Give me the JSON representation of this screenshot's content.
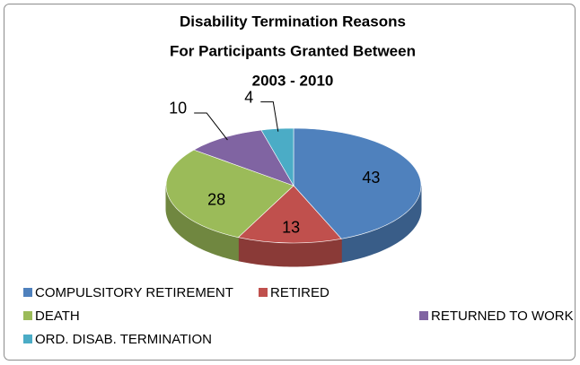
{
  "chart_data": {
    "type": "pie3d",
    "title": [
      "Disability Termination Reasons",
      "For Participants Granted Between",
      "2003 - 2010"
    ],
    "categories": [
      "COMPULSITORY RETIREMENT",
      "RETIRED",
      "DEATH",
      "RETURNED TO WORK",
      "ORD. DISAB. TERMINATION"
    ],
    "values": [
      43,
      13,
      28,
      10,
      4
    ],
    "colors": [
      "#4f81bd",
      "#c0504d",
      "#9bbb59",
      "#8064a2",
      "#4bacc6"
    ],
    "legend": "bottom"
  }
}
